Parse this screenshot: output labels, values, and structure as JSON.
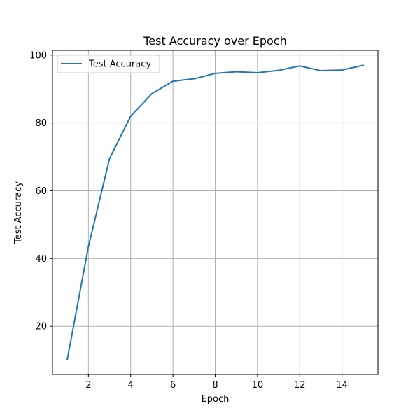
{
  "chart_data": {
    "type": "line",
    "title": "Test Accuracy over Epoch",
    "xlabel": "Epoch",
    "ylabel": "Test Accuracy",
    "x": [
      1,
      2,
      3,
      4,
      5,
      6,
      7,
      8,
      9,
      10,
      11,
      12,
      13,
      14,
      15
    ],
    "series": [
      {
        "name": "Test Accuracy",
        "color": "#1f77b4",
        "values": [
          10.2,
          43.5,
          69.5,
          82.0,
          88.6,
          92.3,
          93.0,
          94.6,
          95.1,
          94.8,
          95.5,
          96.8,
          95.4,
          95.6,
          97.0
        ]
      }
    ],
    "xlim": [
      0.3,
      15.7
    ],
    "ylim": [
      5.8,
      101.4
    ],
    "xticks": [
      2,
      4,
      6,
      8,
      10,
      12,
      14
    ],
    "yticks": [
      20,
      40,
      60,
      80,
      100
    ],
    "grid": true,
    "legend_position": "upper-left"
  }
}
